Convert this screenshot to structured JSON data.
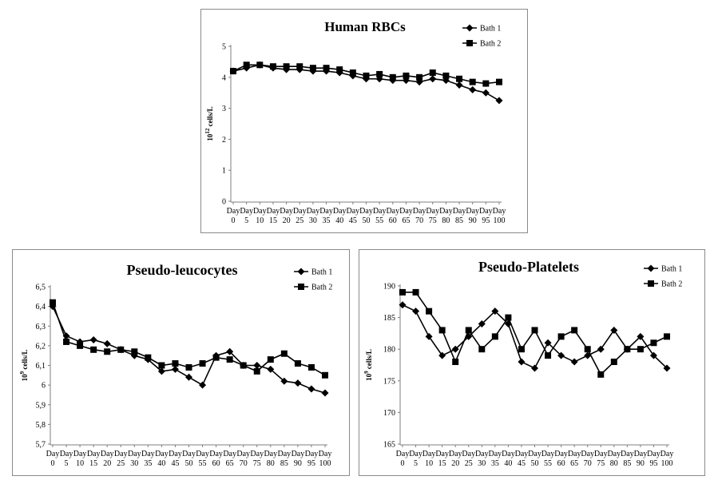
{
  "chart_data": [
    {
      "type": "line",
      "title": "Human RBCs",
      "ylabel_base": "10",
      "ylabel_exp": "12",
      "ylabel_unit": " cells/L",
      "xlabel": "",
      "ylim": [
        0,
        5
      ],
      "yticks": [
        "0",
        "1",
        "2",
        "3",
        "4",
        "5"
      ],
      "categories": [
        "0",
        "5",
        "10",
        "15",
        "20",
        "25",
        "30",
        "35",
        "40",
        "45",
        "50",
        "55",
        "60",
        "65",
        "70",
        "75",
        "80",
        "85",
        "90",
        "95",
        "100"
      ],
      "category_prefix": "Day",
      "series": [
        {
          "name": "Bath 1",
          "marker": "diamond",
          "values": [
            4.2,
            4.3,
            4.4,
            4.3,
            4.25,
            4.25,
            4.2,
            4.2,
            4.15,
            4.05,
            3.95,
            3.95,
            3.9,
            3.9,
            3.85,
            3.95,
            3.9,
            3.75,
            3.6,
            3.5,
            3.25
          ]
        },
        {
          "name": "Bath 2",
          "marker": "square",
          "values": [
            4.2,
            4.4,
            4.4,
            4.35,
            4.35,
            4.35,
            4.3,
            4.3,
            4.25,
            4.15,
            4.05,
            4.1,
            4.0,
            4.05,
            4.0,
            4.15,
            4.05,
            3.95,
            3.85,
            3.8,
            3.85
          ]
        }
      ]
    },
    {
      "type": "line",
      "title": "Pseudo-leucocytes",
      "ylabel_base": "10",
      "ylabel_exp": "9",
      "ylabel_unit": " cells/L",
      "xlabel": "",
      "ylim": [
        5.7,
        6.5
      ],
      "yticks": [
        "5,7",
        "5,8",
        "5,9",
        "6",
        "6,1",
        "6,2",
        "6,3",
        "6,4",
        "6,5"
      ],
      "categories": [
        "0",
        "5",
        "10",
        "15",
        "20",
        "25",
        "30",
        "35",
        "40",
        "45",
        "50",
        "55",
        "60",
        "65",
        "70",
        "75",
        "80",
        "85",
        "90",
        "95",
        "100"
      ],
      "category_prefix": "Day",
      "series": [
        {
          "name": "Bath 1",
          "marker": "diamond",
          "values": [
            6.4,
            6.25,
            6.22,
            6.23,
            6.21,
            6.18,
            6.15,
            6.13,
            6.07,
            6.08,
            6.04,
            6.0,
            6.15,
            6.17,
            6.1,
            6.1,
            6.08,
            6.02,
            6.01,
            5.98,
            5.96
          ]
        },
        {
          "name": "Bath 2",
          "marker": "square",
          "values": [
            6.42,
            6.22,
            6.2,
            6.18,
            6.17,
            6.18,
            6.17,
            6.14,
            6.1,
            6.11,
            6.09,
            6.11,
            6.14,
            6.13,
            6.1,
            6.07,
            6.13,
            6.16,
            6.11,
            6.09,
            6.05
          ]
        }
      ]
    },
    {
      "type": "line",
      "title": "Pseudo-Platelets",
      "ylabel_base": "10",
      "ylabel_exp": "9",
      "ylabel_unit": " cells/L",
      "xlabel": "",
      "ylim": [
        165,
        190
      ],
      "yticks": [
        "165",
        "170",
        "175",
        "180",
        "185",
        "190"
      ],
      "categories": [
        "0",
        "5",
        "10",
        "15",
        "20",
        "25",
        "30",
        "35",
        "40",
        "45",
        "50",
        "55",
        "60",
        "65",
        "70",
        "75",
        "80",
        "85",
        "90",
        "95",
        "100"
      ],
      "category_prefix": "Day",
      "series": [
        {
          "name": "Bath 1",
          "marker": "diamond",
          "values": [
            187,
            186,
            182,
            179,
            180,
            182,
            184,
            186,
            184,
            178,
            177,
            181,
            179,
            178,
            179,
            180,
            183,
            180,
            182,
            179,
            177
          ]
        },
        {
          "name": "Bath 2",
          "marker": "square",
          "values": [
            189,
            189,
            186,
            183,
            178,
            183,
            180,
            182,
            185,
            180,
            183,
            179,
            182,
            183,
            180,
            176,
            178,
            180,
            180,
            181,
            182
          ]
        }
      ]
    }
  ]
}
